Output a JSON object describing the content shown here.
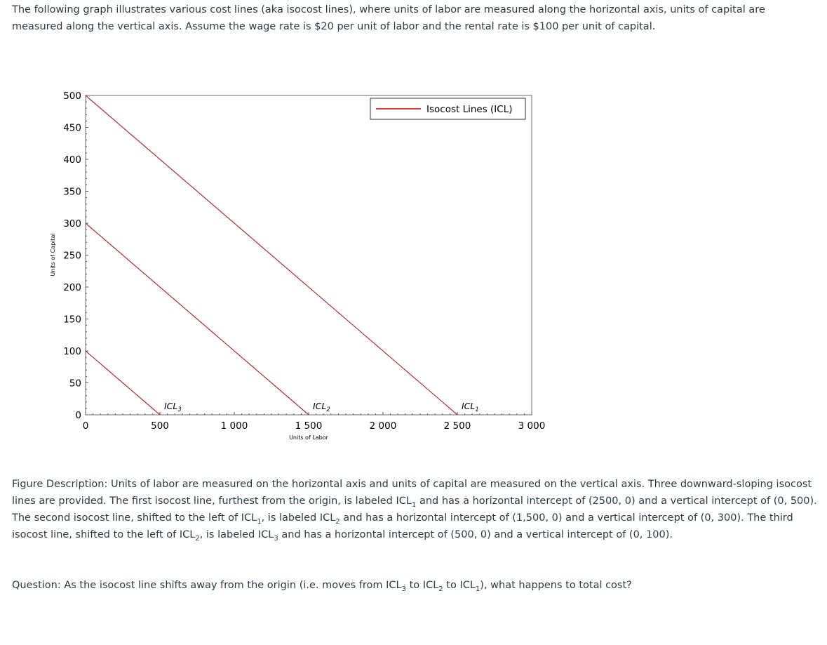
{
  "intro": "The following graph illustrates various cost lines (aka isocost lines), where units of labor are measured along the horizontal axis, units of capital are measured along the vertical axis.  Assume the wage rate is $20 per unit of labor and the rental rate is $100 per unit of capital.",
  "chart_data": {
    "type": "line",
    "xlabel": "Units of Labor",
    "ylabel": "Units of Capital",
    "xlim": [
      0,
      3000
    ],
    "ylim": [
      0,
      500
    ],
    "xticks": [
      0,
      500,
      1000,
      1500,
      2000,
      2500,
      3000
    ],
    "xtick_labels": [
      "0",
      "500",
      "1 000",
      "1 500",
      "2 000",
      "2 500",
      "3 000"
    ],
    "yticks": [
      0,
      50,
      100,
      150,
      200,
      250,
      300,
      350,
      400,
      450,
      500
    ],
    "ytick_labels": [
      "0",
      "50",
      "100",
      "150",
      "200",
      "250",
      "300",
      "350",
      "400",
      "450",
      "500"
    ],
    "grid": false,
    "legend": {
      "position": "top-right",
      "label": "Isocost Lines (ICL)",
      "color": "#cc0000"
    },
    "series": [
      {
        "name": "ICL1",
        "label_main": "ICL",
        "label_sub": "1",
        "x": [
          0,
          2500
        ],
        "y": [
          500,
          0
        ],
        "color": "#a83232"
      },
      {
        "name": "ICL2",
        "label_main": "ICL",
        "label_sub": "2",
        "x": [
          0,
          1500
        ],
        "y": [
          300,
          0
        ],
        "color": "#a83232"
      },
      {
        "name": "ICL3",
        "label_main": "ICL",
        "label_sub": "3",
        "x": [
          0,
          500
        ],
        "y": [
          100,
          0
        ],
        "color": "#a83232"
      }
    ]
  },
  "description": {
    "p1": "Figure Description: Units of labor are measured on the horizontal axis and units of capital are measured on the vertical axis. Three downward-sloping isocost lines are provided. The first isocost line, furthest from the origin, is labeled ",
    "p1_icl": "ICL",
    "p1_sub": "1",
    "p2": " and has a horizontal intercept of (2500, 0) and a vertical intercept of (0, 500). The second isocost line, shifted to the left of ",
    "p2_icl": "ICL",
    "p2_sub": "1",
    "p3": ", is labeled ",
    "p3_icl": "ICL",
    "p3_sub": "2",
    "p4": " and has a horizontal intercept of (1,500, 0) and a vertical intercept of (0, 300). The third isocost line, shifted to the left of ",
    "p4_icl": "ICL",
    "p4_sub": "2",
    "p5": ", is labeled ",
    "p5_icl": "ICL",
    "p5_sub": "3",
    "p6": " and has a horizontal intercept of (500, 0) and a vertical intercept of (0, 100)."
  },
  "question": {
    "q1": "Question: As the isocost line shifts away from the origin (i.e. moves from ",
    "q1_icl": "ICL",
    "q1_sub": "3",
    "q2": " to ",
    "q2_icl": "ICL",
    "q2_sub": "2",
    "q3": " to ",
    "q3_icl": "ICL",
    "q3_sub": "1",
    "q4": "), what happens to total cost?"
  }
}
